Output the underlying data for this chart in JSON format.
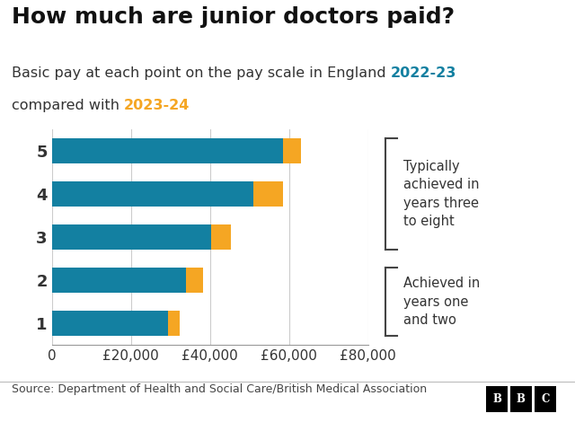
{
  "title": "How much are junior doctors paid?",
  "subtitle_part1": "Basic pay at each point on the pay scale in England ",
  "subtitle_year1": "2022-23",
  "subtitle_part2": "compared with ",
  "subtitle_year2": "2023-24",
  "color_teal": "#1380A1",
  "color_orange": "#F5A623",
  "pay_points": [
    "1",
    "2",
    "3",
    "4",
    "5"
  ],
  "pay_2022": [
    29384,
    34012,
    40257,
    51017,
    58398
  ],
  "pay_2023": [
    32398,
    38205,
    45358,
    58398,
    63152
  ],
  "xlim": [
    0,
    80000
  ],
  "xticks": [
    0,
    20000,
    40000,
    60000,
    80000
  ],
  "xtick_labels": [
    "0",
    "£20,000",
    "£40,000",
    "£60,000",
    "£80,000"
  ],
  "source_text": "Source: Department of Health and Social Care/British Medical Association",
  "background_color": "#FFFFFF",
  "bar_height": 0.6,
  "figsize": [
    6.4,
    4.8
  ],
  "dpi": 100,
  "bracket_top_label": "Typically\nachieved in\nyears three\nto eight",
  "bracket_bottom_label": "Achieved in\nyears one\nand two",
  "title_fontsize": 18,
  "subtitle_fontsize": 11.5,
  "ytick_fontsize": 13,
  "xtick_fontsize": 11,
  "source_fontsize": 9,
  "annotation_fontsize": 10.5
}
